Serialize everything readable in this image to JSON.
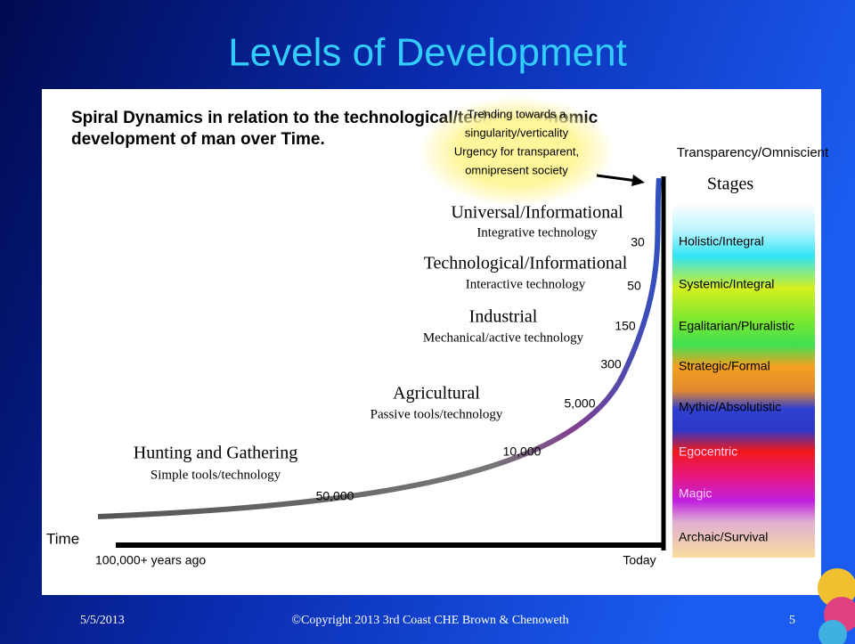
{
  "slide": {
    "title": "Levels of Development",
    "heading": [
      "Spiral Dynamics in relation to the technological/techno-economic",
      "development of man over Time."
    ],
    "annotation": [
      "Trending towards a",
      "singularity/verticality",
      "Urgency for transparent,",
      "omnipresent society"
    ],
    "top_label": "Transparency/Omniscient",
    "stages_title": "Stages",
    "stages": [
      "Holistic/Integral",
      "Systemic/Integral",
      "Egalitarian/Pluralistic",
      "Strategic/Formal",
      "Mythic/Absolutistic",
      "Egocentric",
      "Magic",
      "Archaic/Survival"
    ],
    "levels": [
      {
        "name": "Universal/Informational",
        "tech": "Integrative technology"
      },
      {
        "name": "Technological/Informational",
        "tech": "Interactive technology"
      },
      {
        "name": "Industrial",
        "tech": "Mechanical/active technology"
      },
      {
        "name": "Agricultural",
        "tech": "Passive tools/technology"
      },
      {
        "name": "Hunting and Gathering",
        "tech": "Simple tools/technology"
      }
    ],
    "years": [
      "30",
      "50",
      "150",
      "300",
      "5,000",
      "10,000",
      "50,000"
    ],
    "axis_label": "Time",
    "axis_start": "100,000+ years ago",
    "axis_end": "Today",
    "footer": {
      "date": "5/5/2013",
      "copyright": "©Copyright 2013 3rd Coast CHE Brown & Chenoweth",
      "page": "5"
    }
  }
}
